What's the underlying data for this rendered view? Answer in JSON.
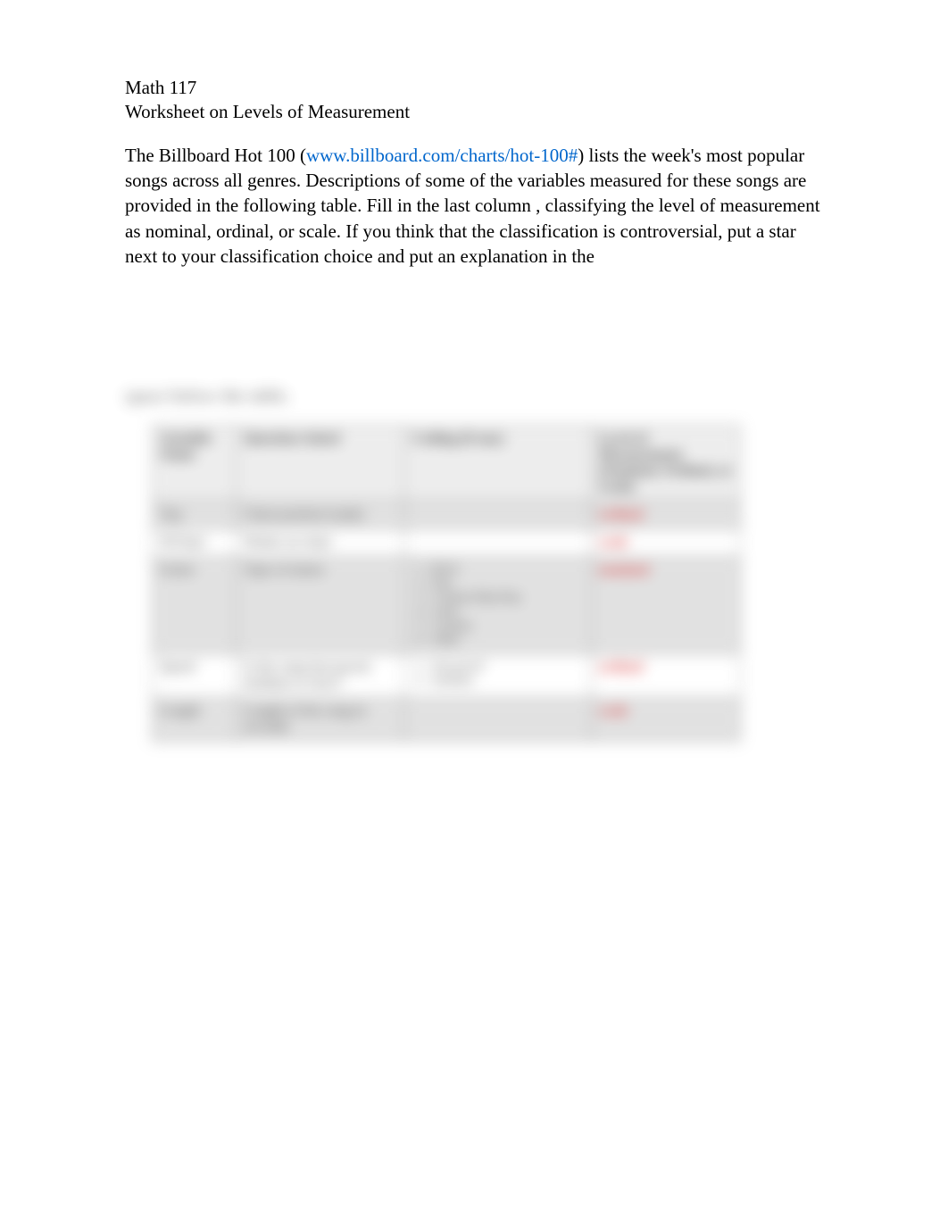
{
  "header": {
    "course": "Math 117",
    "title": "Worksheet on Levels of Measurement"
  },
  "body": {
    "intro_part1": "The Billboard Hot 100 (",
    "link": "www.billboard.com/charts/hot-100#",
    "intro_part2": ") lists the week's most popular songs across all genres.  Descriptions of some of the variables measured for these songs are provided in the following table.  Fill in the last column  , classifying the level of measurement as nominal, ordinal, or scale.  If you think that the classification is controversial, put a star next to your classification choice and put an explanation in the"
  },
  "blurred": {
    "space_text": "space below the table.",
    "table": {
      "headers": {
        "variable": "Variable Name",
        "question": "Question Asked",
        "coding": "Coding (if any)",
        "level": "Level of Measurement (Nominal, Ordinal, or Scale)"
      },
      "rows": [
        {
          "variable": "Top",
          "question": "Chart position (rank)",
          "coding": "",
          "level": "ordinal",
          "gray": true
        },
        {
          "variable": "WChart",
          "question": "Weeks on chart",
          "coding": "",
          "level": "scale",
          "gray": false
        },
        {
          "variable": "Genre",
          "question": "Type of music",
          "coding_list": [
            "1 - Rock",
            "2 - Pop",
            "3 - Country/Hip-Hop",
            "4 - Latin",
            "5 - Country",
            "6 - Other"
          ],
          "level": "nominal",
          "gray": true
        },
        {
          "variable": "Speed",
          "question": "Is the song fast-paced, medium or slow?",
          "coding_list": [
            "1 - fast-paced",
            "2 - medium"
          ],
          "level": "ordinal",
          "gray": false
        },
        {
          "variable": "Length",
          "question": "Length of the song in seconds",
          "coding": "",
          "level": "scale",
          "gray": true
        }
      ]
    }
  }
}
